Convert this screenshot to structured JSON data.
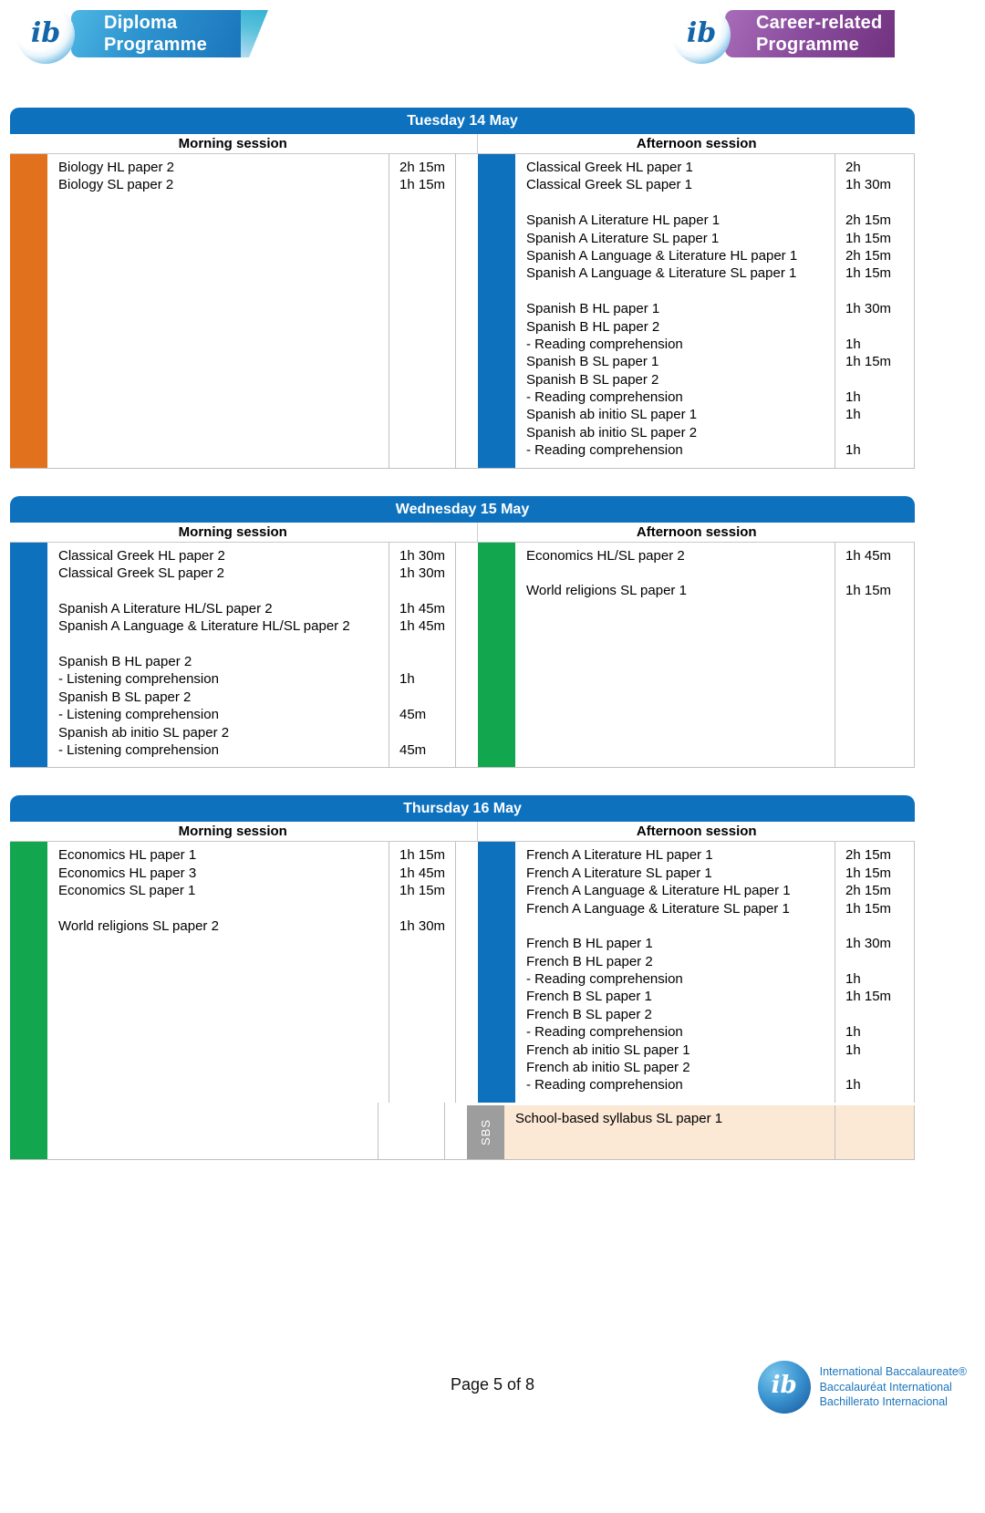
{
  "badges": {
    "dp": {
      "monogram": "ib",
      "line1": "Diploma",
      "line2": "Programme"
    },
    "cp": {
      "monogram": "ib",
      "line1": "Career-related",
      "line2": "Programme"
    }
  },
  "colors": {
    "header_blue": "#0d71be",
    "orange": "#e2711d",
    "blue": "#0d71be",
    "green": "#12a64f",
    "sbs_gray": "#9d9d9d",
    "sbs_peach": "#fbe8d5",
    "ib_blue": "#1b75bc"
  },
  "days": [
    {
      "title": "Tuesday 14 May",
      "morning": {
        "header": "Morning session",
        "bar_color": "#e2711d",
        "rows": [
          {
            "name": "Biology HL paper 2",
            "duration": "2h 15m"
          },
          {
            "name": "Biology SL paper 2",
            "duration": "1h 15m"
          }
        ]
      },
      "afternoon": {
        "header": "Afternoon session",
        "bar_color": "#0d71be",
        "rows": [
          {
            "name": "Classical Greek HL paper 1",
            "duration": "2h"
          },
          {
            "name": "Classical Greek SL paper 1",
            "duration": "1h 30m"
          },
          {
            "name": "",
            "duration": ""
          },
          {
            "name": "Spanish A Literature HL paper 1",
            "duration": "2h 15m"
          },
          {
            "name": "Spanish A Literature SL paper 1",
            "duration": "1h 15m"
          },
          {
            "name": "Spanish A Language & Literature HL paper 1",
            "duration": "2h 15m"
          },
          {
            "name": "Spanish A Language & Literature SL paper 1",
            "duration": "1h 15m"
          },
          {
            "name": "",
            "duration": ""
          },
          {
            "name": "Spanish B HL paper 1",
            "duration": "1h 30m"
          },
          {
            "name": "Spanish B HL paper 2",
            "duration": ""
          },
          {
            "name": "- Reading comprehension",
            "duration": "1h"
          },
          {
            "name": "Spanish B SL paper 1",
            "duration": "1h 15m"
          },
          {
            "name": "Spanish B SL paper 2",
            "duration": ""
          },
          {
            "name": "- Reading comprehension",
            "duration": "1h"
          },
          {
            "name": "Spanish ab initio SL paper 1",
            "duration": "1h"
          },
          {
            "name": "Spanish ab initio SL paper 2",
            "duration": ""
          },
          {
            "name": "- Reading comprehension",
            "duration": "1h"
          }
        ]
      }
    },
    {
      "title": "Wednesday 15 May",
      "morning": {
        "header": "Morning session",
        "bar_color": "#0d71be",
        "rows": [
          {
            "name": "Classical Greek HL paper 2",
            "duration": "1h 30m"
          },
          {
            "name": "Classical Greek SL paper 2",
            "duration": "1h 30m"
          },
          {
            "name": "",
            "duration": ""
          },
          {
            "name": "Spanish A Literature HL/SL paper 2",
            "duration": "1h 45m"
          },
          {
            "name": "Spanish A Language & Literature HL/SL paper 2",
            "duration": "1h 45m"
          },
          {
            "name": "",
            "duration": ""
          },
          {
            "name": "Spanish B HL paper 2",
            "duration": ""
          },
          {
            "name": "- Listening comprehension",
            "duration": "1h"
          },
          {
            "name": "Spanish B SL paper 2",
            "duration": ""
          },
          {
            "name": "- Listening comprehension",
            "duration": "45m"
          },
          {
            "name": "Spanish ab initio SL paper 2",
            "duration": ""
          },
          {
            "name": "- Listening comprehension",
            "duration": "45m"
          }
        ]
      },
      "afternoon": {
        "header": "Afternoon session",
        "bar_color": "#12a64f",
        "rows": [
          {
            "name": "Economics HL/SL paper 2",
            "duration": "1h 45m"
          },
          {
            "name": "",
            "duration": ""
          },
          {
            "name": "World religions SL paper 1",
            "duration": "1h 15m"
          }
        ]
      }
    },
    {
      "title": "Thursday 16 May",
      "morning": {
        "header": "Morning session",
        "bar_color": "#12a64f",
        "rows": [
          {
            "name": "Economics HL paper 1",
            "duration": "1h 15m"
          },
          {
            "name": "Economics HL paper 3",
            "duration": "1h 45m"
          },
          {
            "name": "Economics SL paper 1",
            "duration": "1h 15m"
          },
          {
            "name": "",
            "duration": ""
          },
          {
            "name": "World religions SL paper 2",
            "duration": "1h 30m"
          }
        ]
      },
      "afternoon": {
        "header": "Afternoon session",
        "bar_color": "#0d71be",
        "rows": [
          {
            "name": "French A Literature HL paper 1",
            "duration": "2h 15m"
          },
          {
            "name": "French A Literature SL paper 1",
            "duration": "1h 15m"
          },
          {
            "name": "French A Language & Literature HL paper 1",
            "duration": "2h 15m"
          },
          {
            "name": "French A Language & Literature SL paper 1",
            "duration": "1h 15m"
          },
          {
            "name": "",
            "duration": ""
          },
          {
            "name": "French B HL paper 1",
            "duration": "1h 30m"
          },
          {
            "name": "French B HL paper 2",
            "duration": ""
          },
          {
            "name": "- Reading comprehension",
            "duration": "1h"
          },
          {
            "name": "French B SL paper 1",
            "duration": "1h 15m"
          },
          {
            "name": "French B SL paper 2",
            "duration": ""
          },
          {
            "name": "- Reading comprehension",
            "duration": "1h"
          },
          {
            "name": "French ab initio SL paper 1",
            "duration": "1h"
          },
          {
            "name": "French ab initio SL paper 2",
            "duration": ""
          },
          {
            "name": "- Reading comprehension",
            "duration": "1h"
          }
        ]
      },
      "sbs": {
        "tab_label": "SBS",
        "rows": [
          {
            "name": "School-based syllabus SL paper 1",
            "duration": ""
          }
        ]
      }
    }
  ],
  "footer": {
    "page_label": "Page 5 of 8",
    "logo": {
      "monogram": "ib",
      "lines": [
        "International Baccalaureate®",
        "Baccalauréat International",
        "Bachillerato Internacional"
      ]
    }
  }
}
